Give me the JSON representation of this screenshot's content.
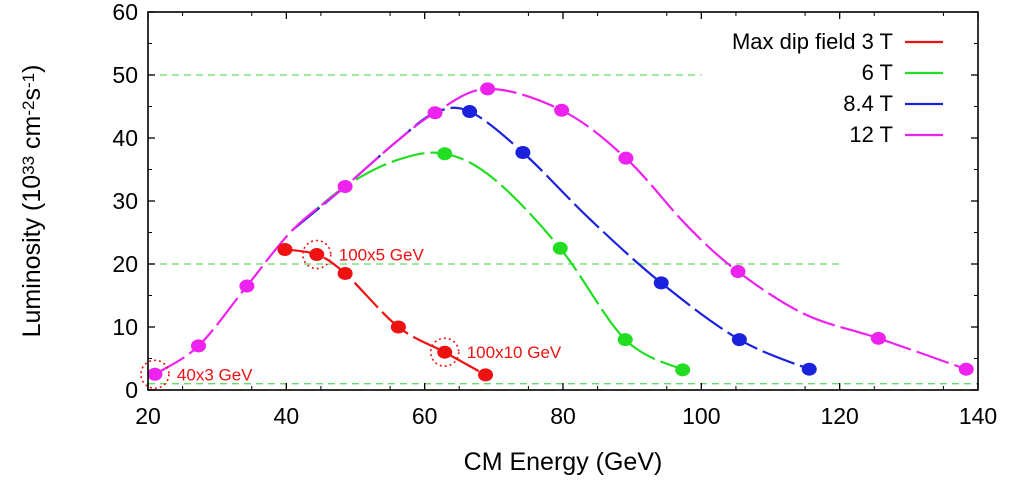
{
  "chart_data": {
    "type": "line",
    "xlabel": "CM Energy (GeV)",
    "ylabel": {
      "base": "Luminosity (10",
      "exp1": "33",
      "mid": " cm",
      "exp2": "-2",
      "mid2": "s",
      "exp3": "-1",
      "end": ")"
    },
    "xlim": [
      20,
      140
    ],
    "ylim": [
      0,
      60
    ],
    "x_ticks": [
      20,
      40,
      60,
      80,
      100,
      120,
      140
    ],
    "y_ticks": [
      0,
      10,
      20,
      30,
      40,
      50,
      60
    ],
    "reference_lines": [
      {
        "y": 50,
        "x_range": [
          20,
          100
        ],
        "color": "#66dd66"
      },
      {
        "y": 20,
        "x_range": [
          20,
          120
        ],
        "color": "#66dd66"
      },
      {
        "y": 1,
        "x_range": [
          20,
          140
        ],
        "color": "#66dd66"
      }
    ],
    "legend_placement": "top-right",
    "series": [
      {
        "name": "Max dip field 3 T",
        "color": "#ee1111",
        "x": [
          21,
          27.3,
          34.3,
          39.8,
          44.4,
          48.5,
          56.2,
          62.9,
          68.8
        ],
        "y": [
          2.5,
          7,
          16.5,
          22.3,
          21.5,
          18.5,
          10,
          6,
          2.4
        ],
        "markers": [
          3,
          4,
          5,
          6,
          7,
          8
        ],
        "line_from": 3
      },
      {
        "name": "6 T",
        "color": "#22dd22",
        "x": [
          21,
          27.3,
          34.3,
          41,
          48.5,
          56,
          62.9,
          70,
          79.6,
          89,
          97.3
        ],
        "y": [
          2.5,
          7,
          16.5,
          25.5,
          32.3,
          36.5,
          37.5,
          33.5,
          22.5,
          8,
          3.2
        ],
        "markers": [
          6,
          8,
          9,
          10
        ],
        "line_from": 3
      },
      {
        "name": "8.4 T",
        "color": "#1a22dd",
        "x": [
          21,
          27.3,
          34.3,
          41,
          48.5,
          56,
          61.5,
          66.5,
          74.2,
          84,
          94.2,
          105.5,
          115.6
        ],
        "y": [
          2.5,
          7,
          16.5,
          25.5,
          32.3,
          39.5,
          44,
          44.2,
          37.7,
          27,
          17,
          8,
          3.3
        ],
        "markers": [
          7,
          8,
          10,
          11,
          12
        ],
        "line_from": 3
      },
      {
        "name": "12 T",
        "color": "#ee22ee",
        "x": [
          21,
          27.3,
          34.3,
          41,
          48.5,
          56,
          61.5,
          69.1,
          79.8,
          89.1,
          98,
          105.3,
          115,
          125.6,
          138.3
        ],
        "y": [
          2.5,
          7,
          16.5,
          25.5,
          32.3,
          39.5,
          44,
          47.8,
          44.4,
          36.8,
          26,
          18.8,
          12,
          8.2,
          3.3
        ],
        "markers": [
          0,
          1,
          2,
          4,
          6,
          7,
          8,
          9,
          11,
          13,
          14
        ],
        "line_from": 0
      }
    ],
    "annotations": [
      {
        "text": "40x3 GeV",
        "x": 21,
        "y": 2.5,
        "color": "#ee1111"
      },
      {
        "text": "100x5 GeV",
        "x": 44.4,
        "y": 21.5,
        "color": "#ee1111"
      },
      {
        "text": "100x10 GeV",
        "x": 62.9,
        "y": 6,
        "color": "#ee1111"
      }
    ]
  }
}
